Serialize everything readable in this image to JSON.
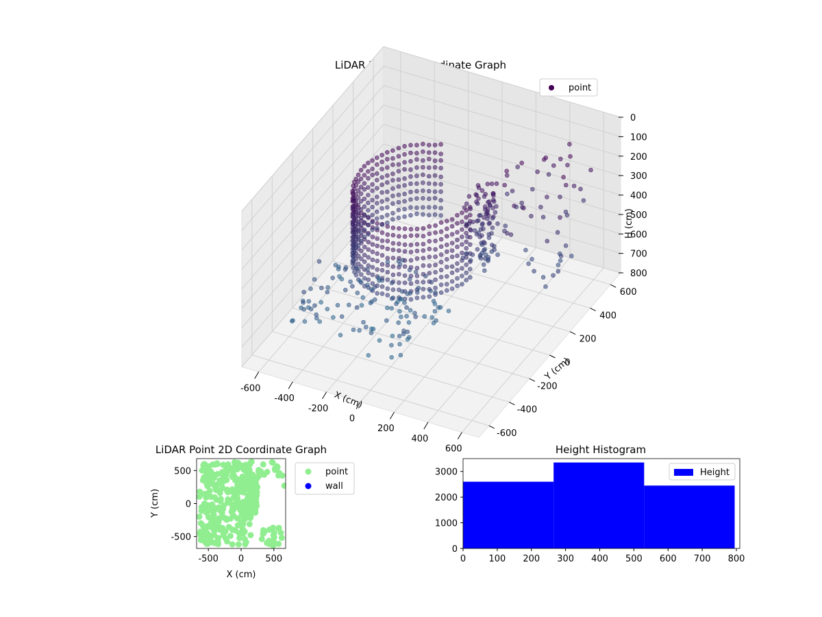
{
  "chart_data": [
    {
      "type": "scatter3d",
      "title": "LiDAR Point 3D Coordinate Graph",
      "xlabel": "X (cm)",
      "ylabel": "Y (cm)",
      "zlabel": "H (cm)",
      "xticks": [
        -600,
        -400,
        -200,
        0,
        200,
        400,
        600
      ],
      "yticks": [
        -600,
        -400,
        -200,
        0,
        200,
        400,
        600
      ],
      "zticks": [
        0,
        100,
        200,
        300,
        400,
        500,
        600,
        700,
        800
      ],
      "xlim": [
        -700,
        700
      ],
      "ylim": [
        -700,
        700
      ],
      "zlim": [
        800,
        0
      ],
      "legend": {
        "label": "point",
        "placement": "top-right",
        "color": "#440154"
      },
      "colormap": "viridis",
      "grid": true
    },
    {
      "type": "scatter",
      "title": "LiDAR Point 2D Coordinate Graph",
      "xlabel": "X (cm)",
      "ylabel": "Y (cm)",
      "xticks": [
        -500,
        0,
        500
      ],
      "yticks": [
        -500,
        0,
        500
      ],
      "xlim": [
        -680,
        680
      ],
      "ylim": [
        -680,
        680
      ],
      "series": [
        {
          "name": "point",
          "color": "#90ee90"
        },
        {
          "name": "wall",
          "color": "#0000ff"
        }
      ],
      "legend_placement": "outside-right"
    },
    {
      "type": "bar",
      "title": "Height Histogram",
      "bins": [
        {
          "x0": 0,
          "x1": 265,
          "count": 2600
        },
        {
          "x0": 265,
          "x1": 530,
          "count": 3350
        },
        {
          "x0": 530,
          "x1": 795,
          "count": 2450
        }
      ],
      "xticks": [
        0,
        100,
        200,
        300,
        400,
        500,
        600,
        700,
        800
      ],
      "yticks": [
        0,
        1000,
        2000,
        3000
      ],
      "xlim": [
        0,
        810
      ],
      "ylim": [
        0,
        3500
      ],
      "color": "#0000ff",
      "legend": {
        "label": "Height",
        "placement": "top-right"
      }
    }
  ]
}
